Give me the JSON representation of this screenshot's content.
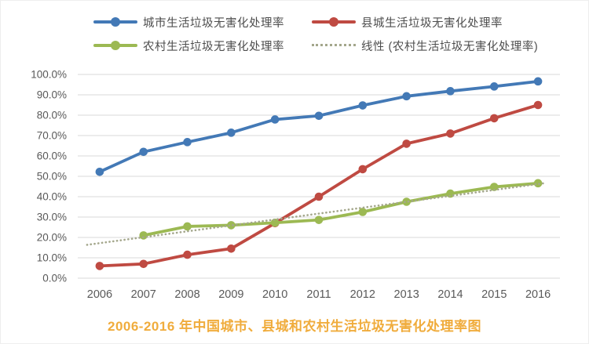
{
  "figure_title": {
    "text": "2006-2016 年中国城市、县城和农村生活垃圾无害化处理率图",
    "color": "#f0ac3c"
  },
  "axis": {
    "text_color": "#595959",
    "grid_color": "#d9d9d9"
  },
  "chart_data": {
    "type": "line",
    "title": "2006-2016 年中国城市、县城和农村生活垃圾无害化处理率图",
    "categories": [
      "2006",
      "2007",
      "2008",
      "2009",
      "2010",
      "2011",
      "2012",
      "2013",
      "2014",
      "2015",
      "2016"
    ],
    "series": [
      {
        "name": "城市生活垃圾无害化处理率",
        "color": "#4379b6",
        "marker": "circle",
        "values": [
          52.2,
          62.0,
          66.8,
          71.4,
          77.9,
          79.7,
          84.8,
          89.3,
          91.8,
          94.1,
          96.6
        ]
      },
      {
        "name": "县城生活垃圾无害化处理率",
        "color": "#bf4a42",
        "marker": "circle",
        "values": [
          6.0,
          7.0,
          11.5,
          14.5,
          27.0,
          40.0,
          53.5,
          66.0,
          71.0,
          78.5,
          85.0
        ]
      },
      {
        "name": "农村生活垃圾无害化处理率",
        "color": "#9cb953",
        "marker": "circle",
        "values": [
          null,
          21.0,
          25.4,
          26.0,
          27.2,
          28.6,
          32.5,
          37.5,
          41.5,
          44.8,
          46.6
        ]
      }
    ],
    "trendline": {
      "name": "线性 (农村生活垃圾无害化处理率)",
      "color": "#a4a78c",
      "style": "dotted",
      "start_value": 17.2,
      "end_value": 46.2
    },
    "ylim": [
      0,
      100
    ],
    "yticks": [
      {
        "v": 0,
        "label": "0.0%"
      },
      {
        "v": 10,
        "label": "10.0%"
      },
      {
        "v": 20,
        "label": "20.0%"
      },
      {
        "v": 30,
        "label": "30.0%"
      },
      {
        "v": 40,
        "label": "40.0%"
      },
      {
        "v": 50,
        "label": "50.0%"
      },
      {
        "v": 60,
        "label": "60.0%"
      },
      {
        "v": 70,
        "label": "70.0%"
      },
      {
        "v": 80,
        "label": "80.0%"
      },
      {
        "v": 90,
        "label": "90.0%"
      },
      {
        "v": 100,
        "label": "100.0%"
      }
    ],
    "grid": true,
    "legend_position": "top"
  }
}
